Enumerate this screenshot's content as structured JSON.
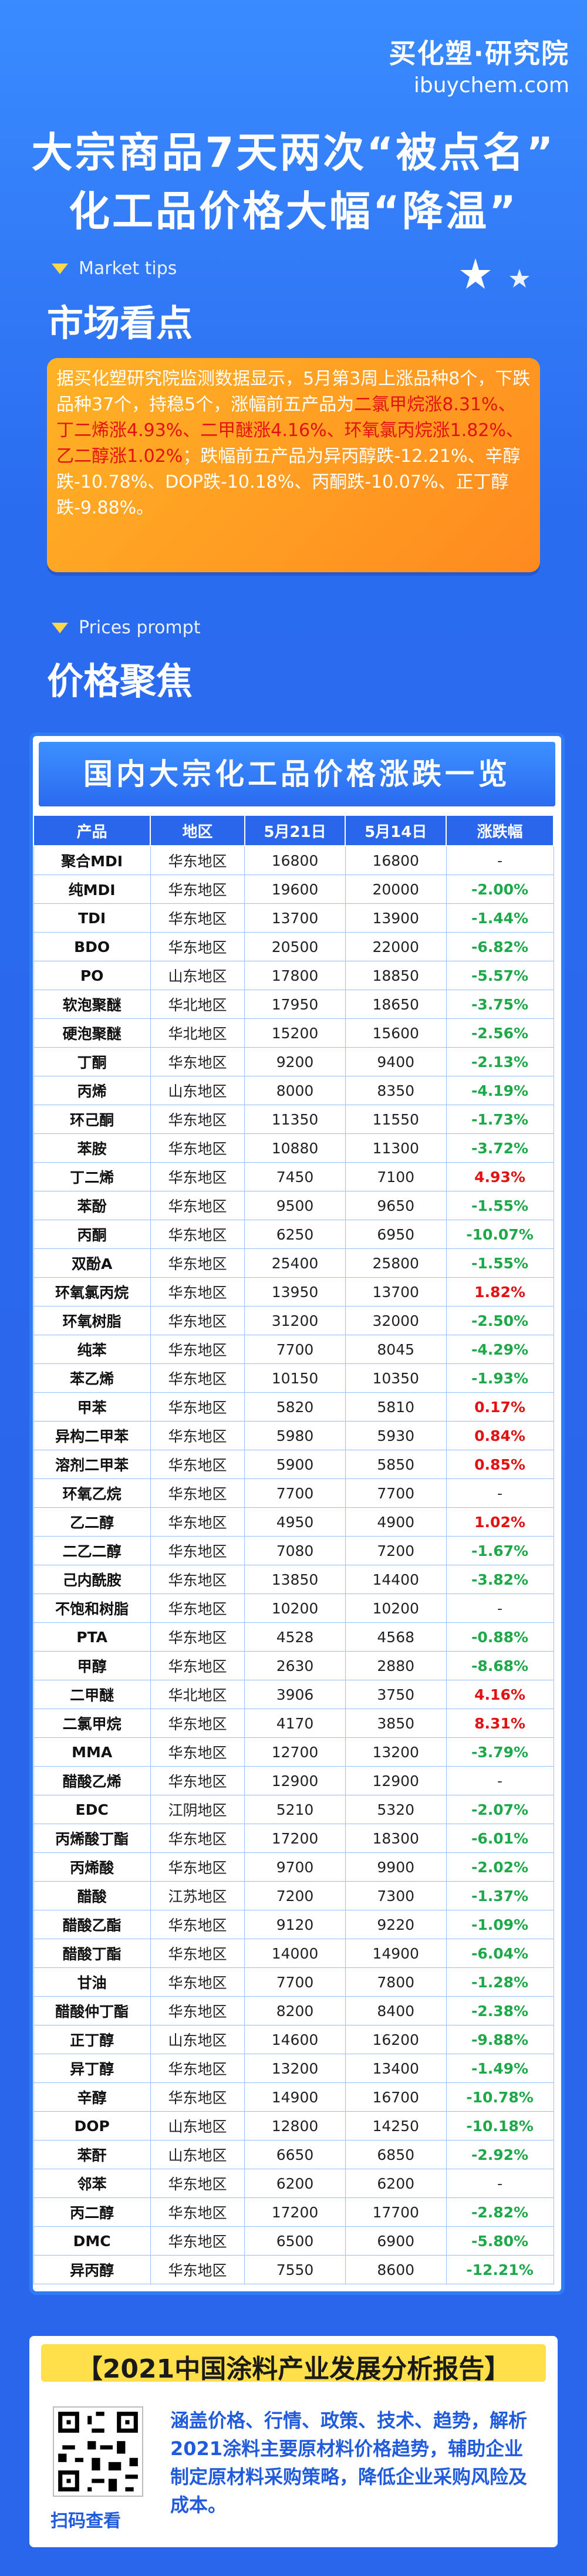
{
  "brand": {
    "cn": "买化塑·研究院",
    "en": "ibuychem.com"
  },
  "headline": {
    "line1": "大宗商品7天两次“被点名”",
    "line2": "化工品价格大幅“降温”"
  },
  "market": {
    "tag_en": "Market tips",
    "title": "市场看点",
    "text_parts": [
      {
        "t": "据买化塑研究院监测数据显示，5月第3周上涨品种8个，下跌品种37个，持稳5个，涨幅前五产品为",
        "red": false
      },
      {
        "t": "二氯甲烷涨8.31%、丁二烯涨4.93%、二甲醚涨4.16%、环氧氯丙烷涨1.82%、乙二醇涨1.02%",
        "red": true
      },
      {
        "t": "；跌幅前五产品为异丙醇跌-12.21%、辛醇跌-10.78%、DOP跌-10.18%、丙酮跌-10.07%、正丁醇跌-9.88%。",
        "red": false
      }
    ]
  },
  "prices": {
    "tag_en": "Prices prompt",
    "title": "价格聚焦",
    "table_title": "国内大宗化工品价格涨跌一览"
  },
  "table": {
    "headers": [
      "产品",
      "地区",
      "5月21日",
      "5月14日",
      "涨跌幅"
    ],
    "rows": [
      [
        "聚合MDI",
        "华东地区",
        "16800",
        "16800",
        "-"
      ],
      [
        "纯MDI",
        "华东地区",
        "19600",
        "20000",
        "-2.00%"
      ],
      [
        "TDI",
        "华东地区",
        "13700",
        "13900",
        "-1.44%"
      ],
      [
        "BDO",
        "华东地区",
        "20500",
        "22000",
        "-6.82%"
      ],
      [
        "PO",
        "山东地区",
        "17800",
        "18850",
        "-5.57%"
      ],
      [
        "软泡聚醚",
        "华北地区",
        "17950",
        "18650",
        "-3.75%"
      ],
      [
        "硬泡聚醚",
        "华北地区",
        "15200",
        "15600",
        "-2.56%"
      ],
      [
        "丁酮",
        "华东地区",
        "9200",
        "9400",
        "-2.13%"
      ],
      [
        "丙烯",
        "山东地区",
        "8000",
        "8350",
        "-4.19%"
      ],
      [
        "环己酮",
        "华东地区",
        "11350",
        "11550",
        "-1.73%"
      ],
      [
        "苯胺",
        "华东地区",
        "10880",
        "11300",
        "-3.72%"
      ],
      [
        "丁二烯",
        "华东地区",
        "7450",
        "7100",
        "4.93%"
      ],
      [
        "苯酚",
        "华东地区",
        "9500",
        "9650",
        "-1.55%"
      ],
      [
        "丙酮",
        "华东地区",
        "6250",
        "6950",
        "-10.07%"
      ],
      [
        "双酚A",
        "华东地区",
        "25400",
        "25800",
        "-1.55%"
      ],
      [
        "环氧氯丙烷",
        "华东地区",
        "13950",
        "13700",
        "1.82%"
      ],
      [
        "环氧树脂",
        "华东地区",
        "31200",
        "32000",
        "-2.50%"
      ],
      [
        "纯苯",
        "华东地区",
        "7700",
        "8045",
        "-4.29%"
      ],
      [
        "苯乙烯",
        "华东地区",
        "10150",
        "10350",
        "-1.93%"
      ],
      [
        "甲苯",
        "华东地区",
        "5820",
        "5810",
        "0.17%"
      ],
      [
        "异构二甲苯",
        "华东地区",
        "5980",
        "5930",
        "0.84%"
      ],
      [
        "溶剂二甲苯",
        "华东地区",
        "5900",
        "5850",
        "0.85%"
      ],
      [
        "环氧乙烷",
        "华东地区",
        "7700",
        "7700",
        "-"
      ],
      [
        "乙二醇",
        "华东地区",
        "4950",
        "4900",
        "1.02%"
      ],
      [
        "二乙二醇",
        "华东地区",
        "7080",
        "7200",
        "-1.67%"
      ],
      [
        "己内酰胺",
        "华东地区",
        "13850",
        "14400",
        "-3.82%"
      ],
      [
        "不饱和树脂",
        "华东地区",
        "10200",
        "10200",
        "-"
      ],
      [
        "PTA",
        "华东地区",
        "4528",
        "4568",
        "-0.88%"
      ],
      [
        "甲醇",
        "华东地区",
        "2630",
        "2880",
        "-8.68%"
      ],
      [
        "二甲醚",
        "华北地区",
        "3906",
        "3750",
        "4.16%"
      ],
      [
        "二氯甲烷",
        "华东地区",
        "4170",
        "3850",
        "8.31%"
      ],
      [
        "MMA",
        "华东地区",
        "12700",
        "13200",
        "-3.79%"
      ],
      [
        "醋酸乙烯",
        "华东地区",
        "12900",
        "12900",
        "-"
      ],
      [
        "EDC",
        "江阴地区",
        "5210",
        "5320",
        "-2.07%"
      ],
      [
        "丙烯酸丁酯",
        "华东地区",
        "17200",
        "18300",
        "-6.01%"
      ],
      [
        "丙烯酸",
        "华东地区",
        "9700",
        "9900",
        "-2.02%"
      ],
      [
        "醋酸",
        "江苏地区",
        "7200",
        "7300",
        "-1.37%"
      ],
      [
        "醋酸乙酯",
        "华东地区",
        "9120",
        "9220",
        "-1.09%"
      ],
      [
        "醋酸丁酯",
        "华东地区",
        "14000",
        "14900",
        "-6.04%"
      ],
      [
        "甘油",
        "华东地区",
        "7700",
        "7800",
        "-1.28%"
      ],
      [
        "醋酸仲丁酯",
        "华东地区",
        "8200",
        "8400",
        "-2.38%"
      ],
      [
        "正丁醇",
        "山东地区",
        "14600",
        "16200",
        "-9.88%"
      ],
      [
        "异丁醇",
        "华东地区",
        "13200",
        "13400",
        "-1.49%"
      ],
      [
        "辛醇",
        "华东地区",
        "14900",
        "16700",
        "-10.78%"
      ],
      [
        "DOP",
        "山东地区",
        "12800",
        "14250",
        "-10.18%"
      ],
      [
        "苯酐",
        "山东地区",
        "6650",
        "6850",
        "-2.92%"
      ],
      [
        "邻苯",
        "华东地区",
        "6200",
        "6200",
        "-"
      ],
      [
        "丙二醇",
        "华东地区",
        "17200",
        "17700",
        "-2.82%"
      ],
      [
        "DMC",
        "华东地区",
        "6500",
        "6900",
        "-5.80%"
      ],
      [
        "异丙醇",
        "华东地区",
        "7550",
        "8600",
        "-12.21%"
      ]
    ]
  },
  "report": {
    "title": "【2021中国涂料产业发展分析报告】",
    "text": "涵盖价格、行情、政策、技术、趋势，解析2021涂料主要原材料价格趋势，辅助企业制定原材料采购策略，降低企业采购风险及成本。",
    "qr_label": "扫码查看"
  },
  "colors": {
    "up": "#e31111",
    "down": "#1ea84a",
    "accent": "#ff9c2a",
    "primary": "#2a66ec"
  }
}
